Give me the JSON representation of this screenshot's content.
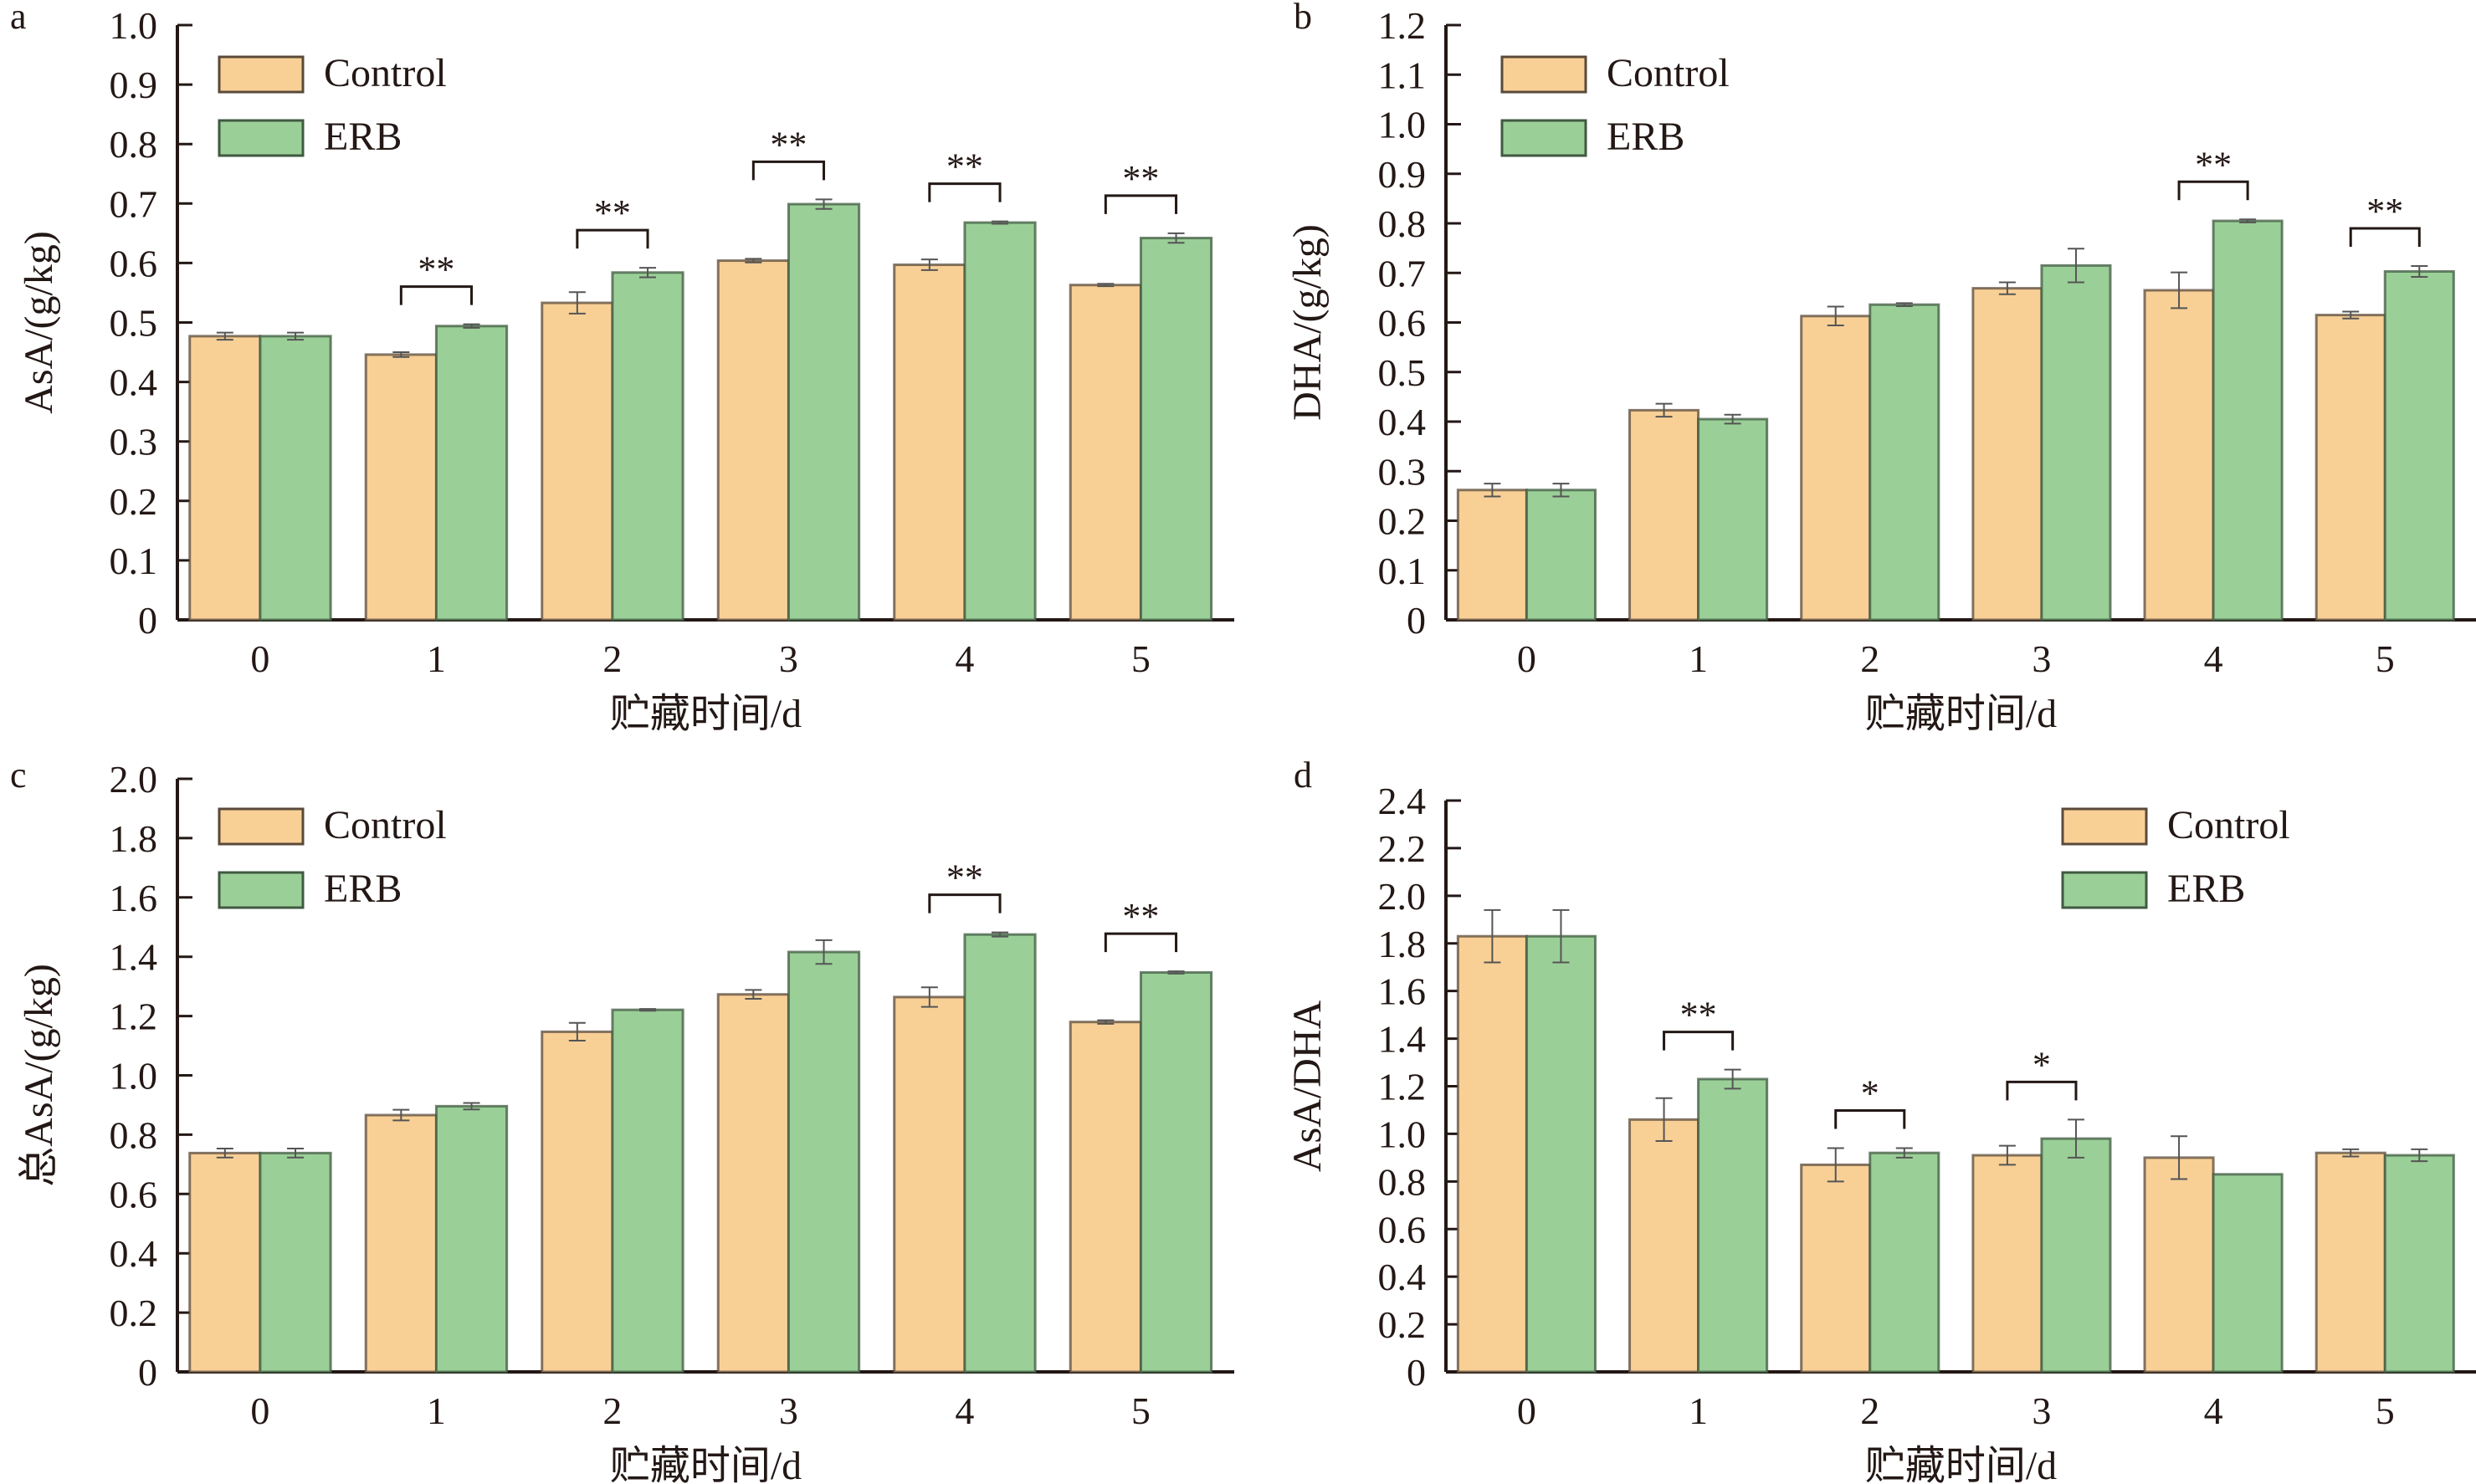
{
  "figure": {
    "legend": {
      "control_label": "Control",
      "erb_label": "ERB"
    },
    "colors": {
      "control": "#F8D096",
      "control_edge": "#5a4a3a",
      "erb": "#9BCF98",
      "erb_edge": "#3f5a40",
      "axis": "#231815"
    }
  },
  "chart_data": [
    {
      "panel": "a",
      "type": "bar",
      "title": "",
      "xlabel": "贮藏时间/d",
      "ylabel": "AsA/(g/kg)",
      "categories": [
        "0",
        "1",
        "2",
        "3",
        "4",
        "5"
      ],
      "ylim": [
        0,
        1.0
      ],
      "yticks": [
        "0",
        "0.1",
        "0.2",
        "0.3",
        "0.4",
        "0.5",
        "0.6",
        "0.7",
        "0.8",
        "0.9",
        "1.0"
      ],
      "ytick_values": [
        0,
        0.1,
        0.2,
        0.3,
        0.4,
        0.5,
        0.6,
        0.7,
        0.8,
        0.9,
        1.0
      ],
      "legend_position": "top-left",
      "series": [
        {
          "name": "Control",
          "values": [
            0.477,
            0.446,
            0.533,
            0.604,
            0.597,
            0.563
          ],
          "errors": [
            0.006,
            0.004,
            0.018,
            0.003,
            0.009,
            0.002
          ]
        },
        {
          "name": "ERB",
          "values": [
            0.477,
            0.494,
            0.584,
            0.699,
            0.668,
            0.642
          ],
          "errors": [
            0.006,
            0.003,
            0.008,
            0.008,
            0.002,
            0.008
          ]
        }
      ],
      "significance": [
        "",
        "**",
        "**",
        "**",
        "**",
        "**"
      ]
    },
    {
      "panel": "b",
      "type": "bar",
      "title": "",
      "xlabel": "贮藏时间/d",
      "ylabel": "DHA/(g/kg)",
      "categories": [
        "0",
        "1",
        "2",
        "3",
        "4",
        "5"
      ],
      "ylim": [
        0,
        1.2
      ],
      "yticks": [
        "0",
        "0.1",
        "0.2",
        "0.3",
        "0.4",
        "0.5",
        "0.6",
        "0.7",
        "0.8",
        "0.9",
        "1.0",
        "1.1",
        "1.2"
      ],
      "ytick_values": [
        0,
        0.1,
        0.2,
        0.3,
        0.4,
        0.5,
        0.6,
        0.7,
        0.8,
        0.9,
        1.0,
        1.1,
        1.2
      ],
      "legend_position": "top-left",
      "series": [
        {
          "name": "Control",
          "values": [
            0.262,
            0.423,
            0.613,
            0.669,
            0.665,
            0.615
          ],
          "errors": [
            0.013,
            0.013,
            0.019,
            0.012,
            0.036,
            0.007
          ]
        },
        {
          "name": "ERB",
          "values": [
            0.262,
            0.405,
            0.636,
            0.715,
            0.805,
            0.703
          ],
          "errors": [
            0.013,
            0.009,
            0.003,
            0.034,
            0.003,
            0.011
          ]
        }
      ],
      "significance": [
        "",
        "",
        "",
        "",
        "**",
        "**"
      ]
    },
    {
      "panel": "c",
      "type": "bar",
      "title": "",
      "xlabel": "贮藏时间/d",
      "ylabel": "总AsA/(g/kg)",
      "categories": [
        "0",
        "1",
        "2",
        "3",
        "4",
        "5"
      ],
      "ylim": [
        0,
        2.0
      ],
      "yticks": [
        "0",
        "0.2",
        "0.4",
        "0.6",
        "0.8",
        "1.0",
        "1.2",
        "1.4",
        "1.6",
        "1.8",
        "2.0"
      ],
      "ytick_values": [
        0,
        0.2,
        0.4,
        0.6,
        0.8,
        1.0,
        1.2,
        1.4,
        1.6,
        1.8,
        2.0
      ],
      "legend_position": "top-left",
      "series": [
        {
          "name": "Control",
          "values": [
            0.738,
            0.866,
            1.147,
            1.273,
            1.264,
            1.18
          ],
          "errors": [
            0.015,
            0.018,
            0.03,
            0.015,
            0.033,
            0.006
          ]
        },
        {
          "name": "ERB",
          "values": [
            0.738,
            0.896,
            1.221,
            1.416,
            1.475,
            1.347
          ],
          "errors": [
            0.015,
            0.011,
            0.003,
            0.04,
            0.007,
            0.004
          ]
        }
      ],
      "significance": [
        "",
        "",
        "",
        "",
        "**",
        "**"
      ]
    },
    {
      "panel": "d",
      "type": "bar",
      "title": "",
      "xlabel": "贮藏时间/d",
      "ylabel": "AsA/DHA",
      "categories": [
        "0",
        "1",
        "2",
        "3",
        "4",
        "5"
      ],
      "ylim": [
        0,
        2.4
      ],
      "yticks": [
        "0",
        "0.2",
        "0.4",
        "0.6",
        "0.8",
        "1.0",
        "1.2",
        "1.4",
        "1.6",
        "1.8",
        "2.0",
        "2.2",
        "2.4"
      ],
      "ytick_values": [
        0,
        0.2,
        0.4,
        0.6,
        0.8,
        1.0,
        1.2,
        1.4,
        1.6,
        1.8,
        2.0,
        2.2,
        2.4
      ],
      "legend_position": "top-right",
      "series": [
        {
          "name": "Control",
          "values": [
            1.83,
            1.06,
            0.87,
            0.91,
            0.9,
            0.92
          ],
          "errors": [
            0.11,
            0.09,
            0.07,
            0.04,
            0.09,
            0.015
          ]
        },
        {
          "name": "ERB",
          "values": [
            1.83,
            1.23,
            0.92,
            0.98,
            0.83,
            0.91
          ],
          "errors": [
            0.11,
            0.04,
            0.02,
            0.08,
            0.0,
            0.025
          ]
        }
      ],
      "significance": [
        "",
        "**",
        "*",
        "*",
        "",
        ""
      ]
    }
  ]
}
